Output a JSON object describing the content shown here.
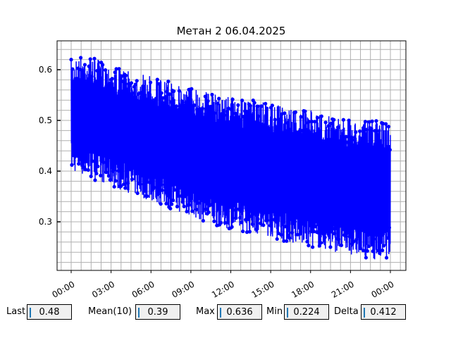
{
  "chart_data": {
    "type": "line",
    "title": "Метан 2 06.04.2025",
    "xlabel": "",
    "ylabel": "",
    "x_tick_labels": [
      "00:00",
      "03:00",
      "06:00",
      "09:00",
      "12:00",
      "15:00",
      "18:00",
      "21:00",
      "00:00"
    ],
    "y_tick_labels": [
      "0.3",
      "0.4",
      "0.5",
      "0.6"
    ],
    "ylim": [
      0.205,
      0.66
    ],
    "xlim_hours": [
      -1.0,
      25.0
    ],
    "grid": true,
    "color": "#0000ff",
    "series": [
      {
        "hour": [
          0,
          1,
          2,
          3,
          4,
          5,
          6,
          7,
          8,
          9,
          10,
          11,
          12,
          13,
          14,
          15,
          16,
          17,
          18,
          19,
          20,
          21,
          22,
          23,
          24
        ],
        "max": [
          0.62,
          0.63,
          0.62,
          0.61,
          0.6,
          0.59,
          0.59,
          0.58,
          0.57,
          0.57,
          0.56,
          0.55,
          0.55,
          0.54,
          0.54,
          0.53,
          0.53,
          0.52,
          0.52,
          0.51,
          0.51,
          0.5,
          0.5,
          0.5,
          0.5
        ],
        "min": [
          0.4,
          0.39,
          0.38,
          0.37,
          0.36,
          0.35,
          0.34,
          0.33,
          0.32,
          0.31,
          0.3,
          0.29,
          0.285,
          0.28,
          0.275,
          0.27,
          0.26,
          0.255,
          0.25,
          0.245,
          0.24,
          0.235,
          0.23,
          0.225,
          0.23
        ]
      }
    ]
  },
  "stats": {
    "last_label": "Last",
    "last_value": "0.48",
    "mean_label": "Mean(10)",
    "mean_value": "0.39",
    "max_label": "Max",
    "max_value": "0.636",
    "min_label": "Min",
    "min_value": "0.224",
    "delta_label": "Delta",
    "delta_value": "0.412"
  }
}
